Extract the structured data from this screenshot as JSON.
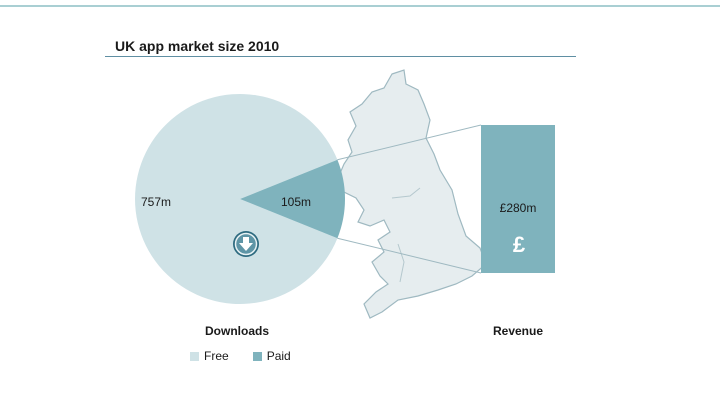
{
  "chart_data": {
    "type": "pie",
    "title": "UK app market size 2010",
    "categories": [
      "Free",
      "Paid"
    ],
    "series": [
      {
        "name": "Downloads",
        "values": [
          757,
          105
        ]
      }
    ],
    "slice_labels": [
      "757m",
      "105m"
    ],
    "revenue": {
      "label": "Revenue",
      "value_label": "£280m",
      "value": 280,
      "symbol": "£"
    },
    "legend": {
      "placement": "bottom-left",
      "items": [
        "Free",
        "Paid"
      ]
    },
    "colors": {
      "free": "#cfe2e6",
      "paid": "#7fb3bd",
      "map": "#e6edef",
      "map_stroke": "#9fb9c1",
      "rule": "#5f8fa3"
    },
    "icons": [
      "download-arrow-icon",
      "pound-icon"
    ]
  }
}
